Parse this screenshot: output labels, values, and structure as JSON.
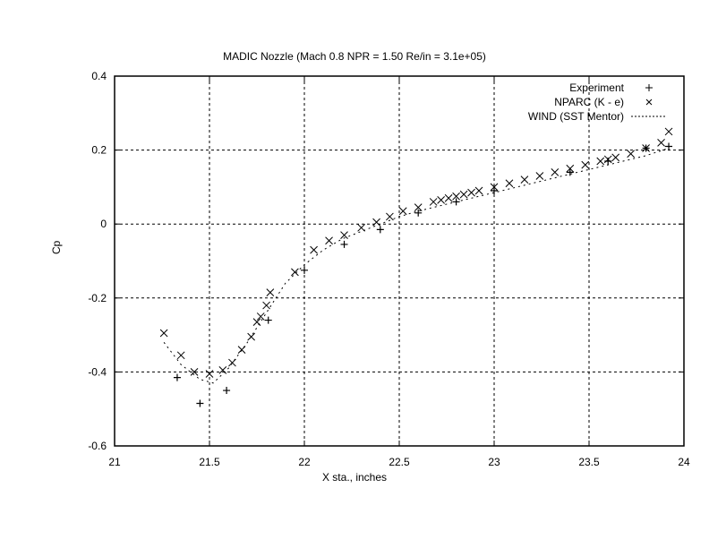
{
  "chart_data": {
    "type": "scatter",
    "title": "MADIC Nozzle (Mach 0.8   NPR = 1.50   Re/in = 3.1e+05)",
    "xlabel": "X sta., inches",
    "ylabel": "Cp",
    "xlim": [
      21,
      24
    ],
    "ylim": [
      -0.6,
      0.4
    ],
    "xticks": [
      "21",
      "21.5",
      "22",
      "22.5",
      "23",
      "23.5",
      "24"
    ],
    "yticks": [
      "-0.6",
      "-0.4",
      "-0.2",
      "0",
      "0.2",
      "0.4"
    ],
    "grid": true,
    "legend_position": "upper right",
    "legend": [
      "Experiment",
      "NPARC (K - e)",
      "WIND (SST Mentor)"
    ],
    "series": [
      {
        "name": "Experiment",
        "marker": "plus",
        "x": [
          21.33,
          21.45,
          21.59,
          21.81,
          22.0,
          22.21,
          22.4,
          22.6,
          22.8,
          23.0,
          23.4,
          23.6,
          23.8,
          23.92
        ],
        "y": [
          -0.415,
          -0.485,
          -0.45,
          -0.26,
          -0.125,
          -0.055,
          -0.015,
          0.03,
          0.06,
          0.09,
          0.14,
          0.17,
          0.205,
          0.21
        ]
      },
      {
        "name": "NPARC (K - e)",
        "marker": "cross",
        "x": [
          21.26,
          21.35,
          21.42,
          21.5,
          21.57,
          21.62,
          21.67,
          21.72,
          21.75,
          21.77,
          21.8,
          21.82,
          21.95,
          22.05,
          22.13,
          22.21,
          22.3,
          22.38,
          22.45,
          22.52,
          22.6,
          22.68,
          22.72,
          22.76,
          22.8,
          22.84,
          22.88,
          22.92,
          23.0,
          23.08,
          23.16,
          23.24,
          23.32,
          23.4,
          23.48,
          23.56,
          23.6,
          23.64,
          23.72,
          23.8,
          23.88,
          23.92
        ],
        "y": [
          -0.295,
          -0.355,
          -0.4,
          -0.405,
          -0.395,
          -0.375,
          -0.34,
          -0.305,
          -0.265,
          -0.25,
          -0.22,
          -0.185,
          -0.13,
          -0.07,
          -0.045,
          -0.03,
          -0.01,
          0.005,
          0.02,
          0.035,
          0.045,
          0.06,
          0.065,
          0.07,
          0.075,
          0.08,
          0.085,
          0.09,
          0.1,
          0.11,
          0.12,
          0.13,
          0.14,
          0.15,
          0.16,
          0.17,
          0.175,
          0.18,
          0.19,
          0.205,
          0.22,
          0.25
        ]
      },
      {
        "name": "WIND (SST Mentor)",
        "marker": "dashed-line",
        "x": [
          21.26,
          21.35,
          21.45,
          21.52,
          21.6,
          21.7,
          21.8,
          21.9,
          22.0,
          22.1,
          22.2,
          22.3,
          22.4,
          22.5,
          22.6,
          22.8,
          23.0,
          23.2,
          23.4,
          23.6,
          23.8,
          23.92
        ],
        "y": [
          -0.32,
          -0.38,
          -0.42,
          -0.43,
          -0.39,
          -0.32,
          -0.24,
          -0.16,
          -0.11,
          -0.07,
          -0.04,
          -0.02,
          0.0,
          0.02,
          0.035,
          0.06,
          0.085,
          0.11,
          0.135,
          0.16,
          0.185,
          0.205
        ]
      }
    ]
  }
}
